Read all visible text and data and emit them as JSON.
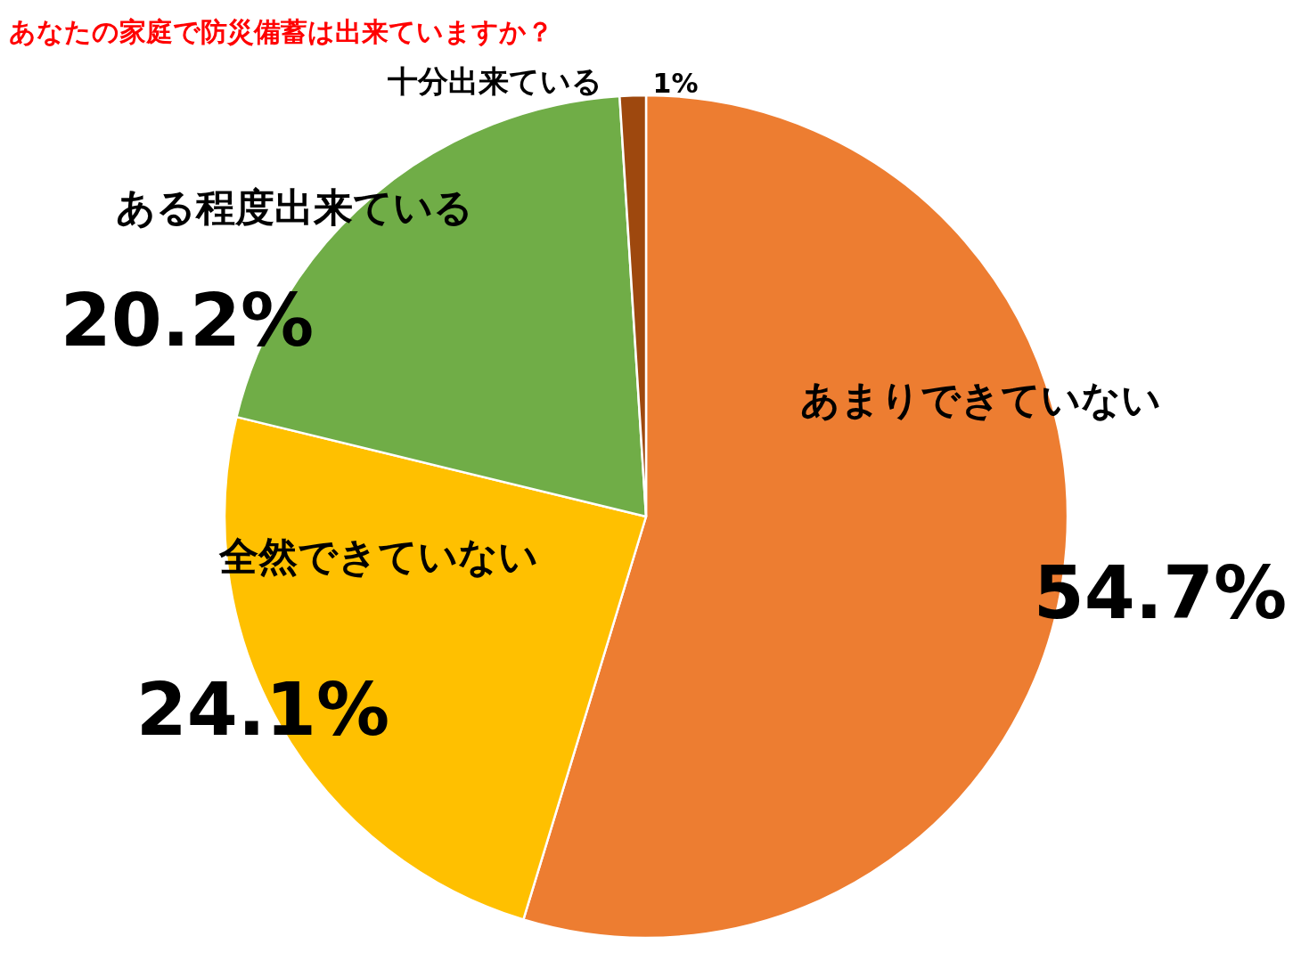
{
  "chart_data": {
    "type": "pie",
    "title": "あなたの家庭で防災備蓄は出来ていますか？",
    "categories": [
      "あまりできていない",
      "全然できていない",
      "ある程度出来ている",
      "十分出来ている"
    ],
    "values": [
      54.7,
      24.1,
      20.2,
      1
    ],
    "colors": [
      "#ed7d31",
      "#ffc000",
      "#70ad47",
      "#9e480e"
    ],
    "value_labels": [
      "54.7%",
      "24.1%",
      "20.2%",
      "1%"
    ]
  }
}
